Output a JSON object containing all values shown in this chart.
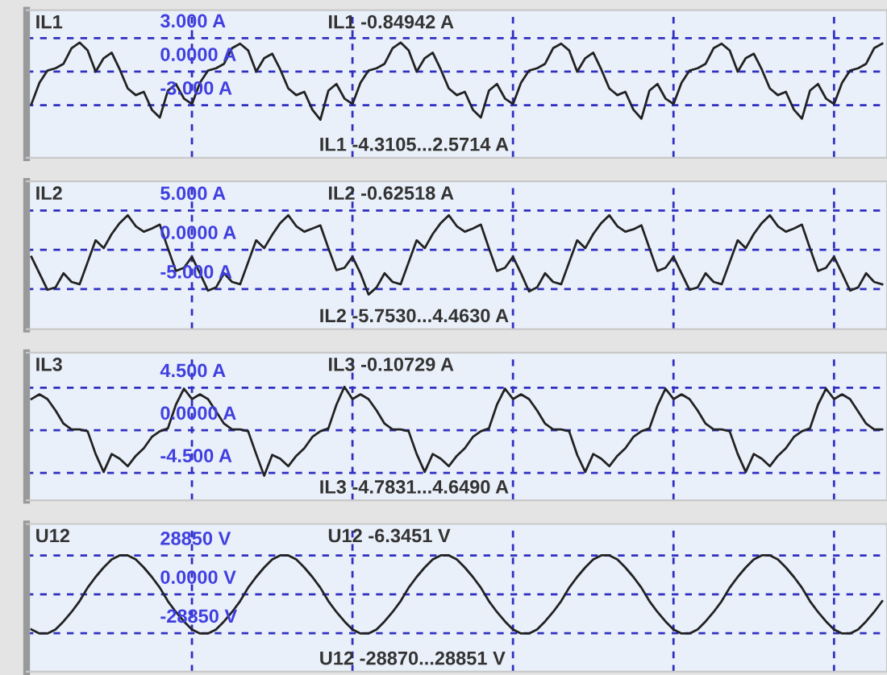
{
  "chart_data": [
    {
      "type": "line",
      "title": "IL1",
      "annotations": [
        "IL1 -0.84942 A",
        "IL1 -4.3105...2.5714 A"
      ],
      "tick_labels": "y",
      "grid": true,
      "ylim": [
        -7.7,
        5.5
      ],
      "yticks": [
        {
          "value": 3,
          "label": "3.000 A"
        },
        {
          "value": 0,
          "label": "0.0000 A"
        },
        {
          "value": -3,
          "label": "-3.000 A"
        }
      ],
      "categories": [
        null,
        null,
        null,
        null,
        null,
        null,
        null,
        null,
        null,
        null,
        null,
        null,
        null,
        null,
        null,
        null,
        null,
        null,
        null,
        null,
        null,
        null,
        null,
        null,
        null,
        null,
        null,
        null,
        null,
        null,
        null,
        null,
        null,
        null,
        null,
        null,
        null,
        null,
        null,
        null,
        null,
        null,
        null,
        null,
        null,
        null,
        null,
        null,
        null,
        null,
        null,
        null,
        null,
        null,
        null,
        null,
        null,
        null,
        null,
        null,
        null,
        null,
        null,
        null,
        null,
        null,
        null,
        null,
        null,
        null,
        null,
        null,
        null,
        null,
        null,
        null,
        null,
        null,
        null,
        null,
        null,
        null,
        null,
        null,
        null,
        null,
        null,
        null,
        null,
        null,
        null,
        null,
        null,
        null,
        null,
        null,
        null,
        null,
        null,
        null,
        null,
        null,
        null,
        null,
        null,
        null,
        null
      ],
      "series": [
        {
          "color": "#222222",
          "values": [
            -2.9,
            -1.0,
            0.1,
            0.3,
            0.7,
            2.1,
            2.6,
            1.9,
            0.0,
            1.2,
            1.7,
            0.2,
            -1.5,
            -2.1,
            -1.8,
            -3.4,
            -4.1,
            -1.7,
            -1.1,
            -2.4,
            -2.9,
            -1.0,
            0.1,
            0.3,
            0.7,
            2.1,
            2.5,
            1.9,
            0.0,
            1.2,
            1.6,
            0.2,
            -1.5,
            -2.1,
            -1.8,
            -3.4,
            -4.3,
            -1.7,
            -1.1,
            -2.4,
            -2.9,
            -1.0,
            0.1,
            0.3,
            0.7,
            2.1,
            2.6,
            1.9,
            0.0,
            1.2,
            1.7,
            0.2,
            -1.5,
            -2.1,
            -1.8,
            -3.4,
            -4.1,
            -1.7,
            -1.1,
            -2.4,
            -2.9,
            -1.0,
            0.1,
            0.3,
            0.7,
            2.1,
            2.5,
            1.9,
            0.0,
            1.2,
            1.7,
            0.2,
            -1.5,
            -2.1,
            -1.8,
            -3.4,
            -4.2,
            -1.7,
            -1.1,
            -2.4,
            -2.9,
            -1.0,
            0.1,
            0.3,
            0.7,
            2.1,
            2.5,
            1.9,
            0.0,
            1.2,
            1.6,
            0.2,
            -1.5,
            -2.1,
            -1.8,
            -3.4,
            -4.2,
            -1.7,
            -1.1,
            -2.4,
            -2.9,
            -1.0,
            0.1,
            0.3,
            0.7,
            2.1,
            2.5
          ]
        }
      ]
    },
    {
      "type": "line",
      "title": "IL2",
      "annotations": [
        "IL2 -0.62518 A",
        "IL2 -5.7530...4.4630 A"
      ],
      "tick_labels": "y",
      "grid": true,
      "ylim": [
        -10.1,
        8.7
      ],
      "yticks": [
        {
          "value": 5,
          "label": "5.000 A"
        },
        {
          "value": 0,
          "label": "0.0000 A"
        },
        {
          "value": -5,
          "label": "-5.000 A"
        }
      ],
      "categories": [
        null,
        null,
        null,
        null,
        null,
        null,
        null,
        null,
        null,
        null,
        null,
        null,
        null,
        null,
        null,
        null,
        null,
        null,
        null,
        null,
        null,
        null,
        null,
        null,
        null,
        null,
        null,
        null,
        null,
        null,
        null,
        null,
        null,
        null,
        null,
        null,
        null,
        null,
        null,
        null,
        null,
        null,
        null,
        null,
        null,
        null,
        null,
        null,
        null,
        null,
        null,
        null,
        null,
        null,
        null,
        null,
        null,
        null,
        null,
        null,
        null,
        null,
        null,
        null,
        null,
        null,
        null,
        null,
        null,
        null,
        null,
        null,
        null,
        null,
        null,
        null,
        null,
        null,
        null,
        null,
        null,
        null,
        null,
        null,
        null,
        null,
        null,
        null,
        null,
        null,
        null,
        null,
        null,
        null,
        null,
        null,
        null,
        null,
        null,
        null,
        null,
        null,
        null,
        null,
        null,
        null,
        null
      ],
      "series": [
        {
          "color": "#222222",
          "values": [
            -0.9,
            -3.0,
            -5.1,
            -4.8,
            -3.0,
            -4.1,
            -4.4,
            -1.6,
            1.2,
            0.2,
            2.0,
            3.4,
            4.4,
            3.0,
            2.3,
            2.7,
            3.2,
            0.2,
            -2.7,
            -2.3,
            -0.9,
            -3.0,
            -5.2,
            -4.8,
            -3.0,
            -4.1,
            -4.4,
            -1.6,
            1.2,
            0.2,
            1.9,
            3.4,
            4.4,
            3.0,
            2.3,
            2.7,
            3.1,
            0.2,
            -2.6,
            -2.3,
            -0.9,
            -3.0,
            -5.7,
            -4.8,
            -3.0,
            -4.1,
            -4.4,
            -1.6,
            1.2,
            0.2,
            2.0,
            3.4,
            4.4,
            3.0,
            2.3,
            2.7,
            3.2,
            0.2,
            -2.7,
            -2.3,
            -0.9,
            -3.0,
            -5.3,
            -4.8,
            -3.0,
            -4.1,
            -4.4,
            -1.6,
            1.2,
            0.2,
            2.0,
            3.4,
            4.4,
            3.0,
            2.3,
            2.6,
            3.1,
            0.2,
            -2.7,
            -2.3,
            -0.9,
            -3.0,
            -5.1,
            -4.8,
            -3.0,
            -4.1,
            -4.4,
            -1.6,
            1.2,
            0.2,
            2.0,
            3.4,
            4.4,
            3.0,
            2.3,
            2.7,
            3.2,
            0.2,
            -2.7,
            -2.3,
            -0.9,
            -3.0,
            -5.2,
            -4.8,
            -3.0,
            -4.1,
            -4.4
          ]
        }
      ]
    },
    {
      "type": "line",
      "title": "IL3",
      "annotations": [
        "IL3 -0.10729 A",
        "IL3 -4.7831...4.6490 A"
      ],
      "tick_labels": "y",
      "grid": true,
      "ylim": [
        -7.4,
        8.2
      ],
      "yticks": [
        {
          "value": 4.5,
          "label": "4.500 A"
        },
        {
          "value": 0,
          "label": "0.0000 A"
        },
        {
          "value": -4.5,
          "label": "-4.500 A"
        }
      ],
      "categories": [
        null,
        null,
        null,
        null,
        null,
        null,
        null,
        null,
        null,
        null,
        null,
        null,
        null,
        null,
        null,
        null,
        null,
        null,
        null,
        null,
        null,
        null,
        null,
        null,
        null,
        null,
        null,
        null,
        null,
        null,
        null,
        null,
        null,
        null,
        null,
        null,
        null,
        null,
        null,
        null,
        null,
        null,
        null,
        null,
        null,
        null,
        null,
        null,
        null,
        null,
        null,
        null,
        null,
        null,
        null,
        null,
        null,
        null,
        null,
        null,
        null,
        null,
        null,
        null,
        null,
        null,
        null,
        null,
        null,
        null,
        null,
        null,
        null,
        null,
        null,
        null,
        null,
        null,
        null,
        null,
        null,
        null,
        null,
        null,
        null,
        null,
        null,
        null,
        null,
        null,
        null,
        null,
        null,
        null,
        null,
        null,
        null,
        null,
        null,
        null,
        null,
        null,
        null,
        null,
        null,
        null,
        null
      ],
      "series": [
        {
          "color": "#222222",
          "values": [
            3.3,
            3.8,
            3.3,
            2.1,
            0.7,
            0.1,
            0.1,
            -0.1,
            -2.5,
            -4.4,
            -2.5,
            -3.0,
            -3.8,
            -2.7,
            -1.9,
            -0.7,
            -0.1,
            0.2,
            2.7,
            4.4,
            3.3,
            3.8,
            3.3,
            2.0,
            0.7,
            0.1,
            0.1,
            -0.1,
            -2.5,
            -4.8,
            -2.6,
            -3.0,
            -3.8,
            -2.7,
            -1.9,
            -0.7,
            -0.1,
            0.2,
            2.7,
            4.6,
            3.3,
            3.8,
            3.3,
            2.1,
            0.7,
            0.1,
            0.1,
            -0.1,
            -2.5,
            -4.4,
            -2.5,
            -3.0,
            -3.8,
            -2.7,
            -1.9,
            -0.7,
            -0.1,
            0.2,
            2.7,
            4.4,
            3.3,
            3.8,
            3.3,
            2.1,
            0.7,
            0.1,
            0.1,
            -0.1,
            -2.6,
            -4.4,
            -2.5,
            -3.0,
            -3.8,
            -2.7,
            -1.9,
            -0.7,
            -0.1,
            0.2,
            2.6,
            4.4,
            3.3,
            3.8,
            3.3,
            2.1,
            0.7,
            0.1,
            0.1,
            -0.1,
            -2.5,
            -4.4,
            -2.5,
            -3.0,
            -3.8,
            -2.7,
            -1.9,
            -0.7,
            -0.1,
            0.2,
            2.7,
            4.4,
            3.3,
            3.8,
            3.3,
            2.0,
            0.7,
            0.1,
            0.1
          ]
        }
      ]
    },
    {
      "type": "line",
      "title": "U12",
      "annotations": [
        "U12 -6.3451 V",
        "U12 -28870...28851 V"
      ],
      "tick_labels": "y",
      "grid": true,
      "ylim": [
        -57300,
        52300
      ],
      "yticks": [
        {
          "value": 28850,
          "label": "28850 V"
        },
        {
          "value": 0,
          "label": "0.0000 V"
        },
        {
          "value": -28850,
          "label": "-28850 V"
        }
      ],
      "categories": [
        null,
        null,
        null,
        null,
        null,
        null,
        null,
        null,
        null,
        null,
        null,
        null,
        null,
        null,
        null,
        null,
        null,
        null,
        null,
        null,
        null,
        null,
        null,
        null,
        null,
        null,
        null,
        null,
        null,
        null,
        null,
        null,
        null,
        null,
        null,
        null,
        null,
        null,
        null,
        null,
        null,
        null,
        null,
        null,
        null,
        null,
        null,
        null,
        null,
        null,
        null,
        null,
        null,
        null,
        null,
        null,
        null,
        null,
        null,
        null,
        null,
        null,
        null,
        null,
        null,
        null,
        null,
        null,
        null,
        null,
        null,
        null,
        null,
        null,
        null,
        null,
        null,
        null,
        null,
        null,
        null,
        null,
        null,
        null,
        null,
        null,
        null,
        null,
        null,
        null,
        null,
        null,
        null,
        null,
        null,
        null,
        null,
        null,
        null,
        null,
        null,
        null,
        null,
        null,
        null,
        null,
        null
      ],
      "series": [
        {
          "color": "#222222",
          "values": [
            -26000,
            -29000,
            -29000,
            -26000,
            -20000,
            -13000,
            -5000,
            5000,
            13000,
            20000,
            26000,
            29000,
            29000,
            26000,
            20000,
            13000,
            5000,
            -5000,
            -13000,
            -20000,
            -26000,
            -29000,
            -29000,
            -26000,
            -20000,
            -13000,
            -5000,
            5000,
            13000,
            20000,
            26000,
            29000,
            29000,
            26000,
            20000,
            13000,
            5000,
            -5000,
            -13000,
            -20000,
            -26000,
            -29000,
            -29000,
            -26000,
            -20000,
            -13000,
            -5000,
            5000,
            13000,
            20000,
            26000,
            29000,
            29000,
            26000,
            20000,
            13000,
            5000,
            -5000,
            -13000,
            -20000,
            -26000,
            -29000,
            -29000,
            -26000,
            -20000,
            -13000,
            -5000,
            5000,
            13000,
            20000,
            26000,
            29000,
            29000,
            26000,
            20000,
            13000,
            5000,
            -5000,
            -13000,
            -20000,
            -26000,
            -29000,
            -29000,
            -26000,
            -20000,
            -13000,
            -5000,
            5000,
            13000,
            20000,
            26000,
            29000,
            29000,
            26000,
            20000,
            13000,
            5000,
            -5000,
            -13000,
            -20000,
            -26000,
            -29000,
            -29000,
            -26000,
            -20000,
            -13000,
            -5000
          ]
        }
      ]
    }
  ]
}
